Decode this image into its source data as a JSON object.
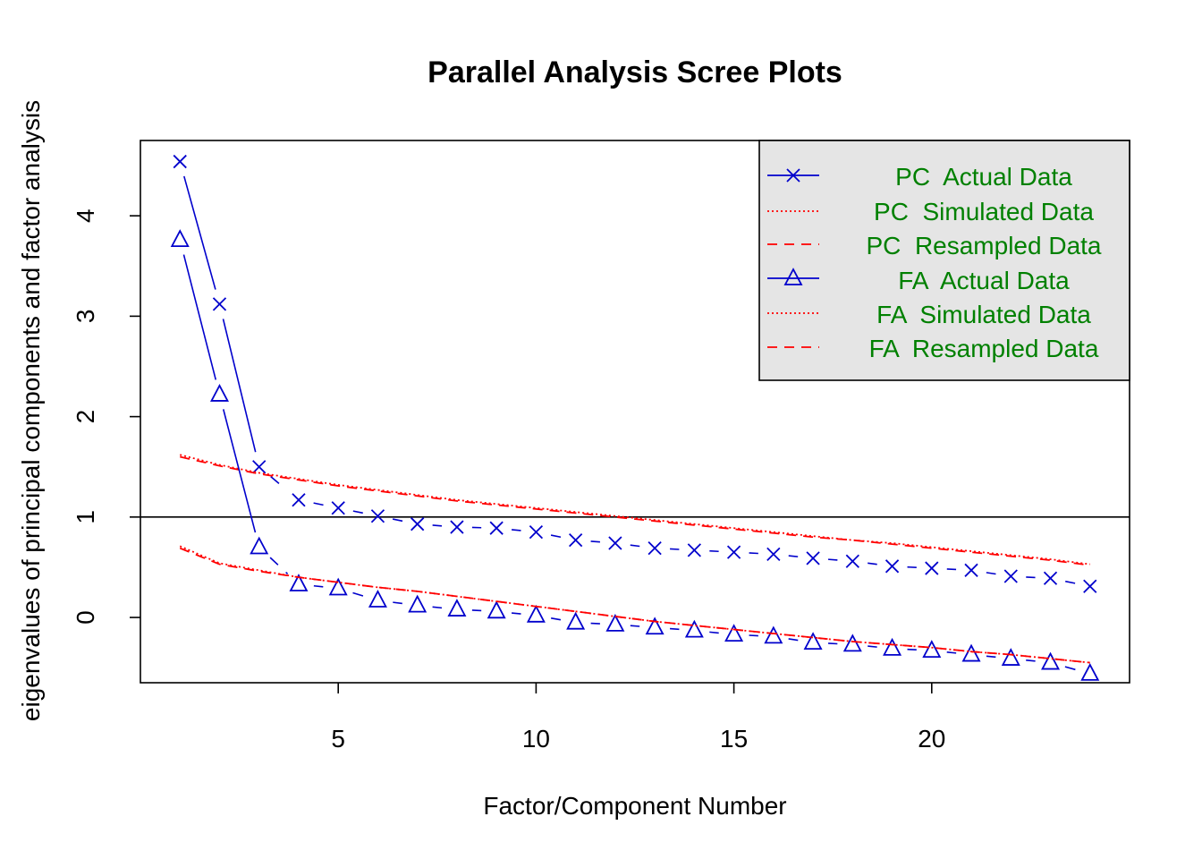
{
  "chart_data": {
    "type": "line",
    "title": "Parallel Analysis Scree Plots",
    "xlabel": "Factor/Component Number",
    "ylabel": "eigenvalues of principal components and factor analysis",
    "xlim": [
      0,
      25
    ],
    "ylim": [
      -0.65,
      4.75
    ],
    "x_ticks": [
      5,
      10,
      15,
      20
    ],
    "y_ticks": [
      0,
      1,
      2,
      3,
      4
    ],
    "reference_line_y": 1,
    "legend_position": "top-right",
    "x": [
      1,
      2,
      3,
      4,
      5,
      6,
      7,
      8,
      9,
      10,
      11,
      12,
      13,
      14,
      15,
      16,
      17,
      18,
      19,
      20,
      21,
      22,
      23,
      24
    ],
    "series": [
      {
        "name": "PC  Actual Data",
        "color": "#0000cc",
        "marker": "x",
        "values": [
          4.54,
          3.12,
          1.5,
          1.17,
          1.09,
          1.01,
          0.93,
          0.9,
          0.89,
          0.85,
          0.77,
          0.74,
          0.69,
          0.67,
          0.65,
          0.63,
          0.59,
          0.56,
          0.51,
          0.49,
          0.47,
          0.41,
          0.39,
          0.31
        ]
      },
      {
        "name": "PC  Simulated Data",
        "color": "#ff0000",
        "style": "dotted",
        "values": [
          1.62,
          1.52,
          1.44,
          1.38,
          1.32,
          1.27,
          1.22,
          1.17,
          1.13,
          1.09,
          1.05,
          1.01,
          0.97,
          0.93,
          0.89,
          0.85,
          0.81,
          0.77,
          0.74,
          0.7,
          0.66,
          0.62,
          0.58,
          0.53
        ]
      },
      {
        "name": "PC  Resampled Data",
        "color": "#ff0000",
        "style": "dashed",
        "values": [
          1.6,
          1.51,
          1.43,
          1.37,
          1.31,
          1.26,
          1.21,
          1.16,
          1.12,
          1.08,
          1.04,
          1.0,
          0.96,
          0.92,
          0.88,
          0.84,
          0.8,
          0.77,
          0.73,
          0.69,
          0.65,
          0.61,
          0.57,
          0.52
        ]
      },
      {
        "name": "FA  Actual Data",
        "color": "#0000cc",
        "marker": "triangle",
        "values": [
          3.76,
          2.22,
          0.7,
          0.33,
          0.29,
          0.17,
          0.12,
          0.08,
          0.06,
          0.02,
          -0.05,
          -0.07,
          -0.1,
          -0.13,
          -0.17,
          -0.19,
          -0.25,
          -0.27,
          -0.31,
          -0.33,
          -0.37,
          -0.41,
          -0.45,
          -0.56
        ]
      },
      {
        "name": "FA  Simulated Data",
        "color": "#ff0000",
        "style": "dotted",
        "values": [
          0.71,
          0.54,
          0.47,
          0.4,
          0.35,
          0.3,
          0.26,
          0.21,
          0.16,
          0.11,
          0.06,
          0.01,
          -0.04,
          -0.08,
          -0.12,
          -0.16,
          -0.2,
          -0.24,
          -0.27,
          -0.3,
          -0.34,
          -0.37,
          -0.41,
          -0.45
        ]
      },
      {
        "name": "FA  Resampled Data",
        "color": "#ff0000",
        "style": "dashed",
        "values": [
          0.69,
          0.53,
          0.46,
          0.4,
          0.35,
          0.3,
          0.26,
          0.21,
          0.16,
          0.11,
          0.06,
          0.01,
          -0.04,
          -0.08,
          -0.12,
          -0.16,
          -0.2,
          -0.24,
          -0.27,
          -0.3,
          -0.34,
          -0.37,
          -0.41,
          -0.45
        ]
      }
    ]
  }
}
